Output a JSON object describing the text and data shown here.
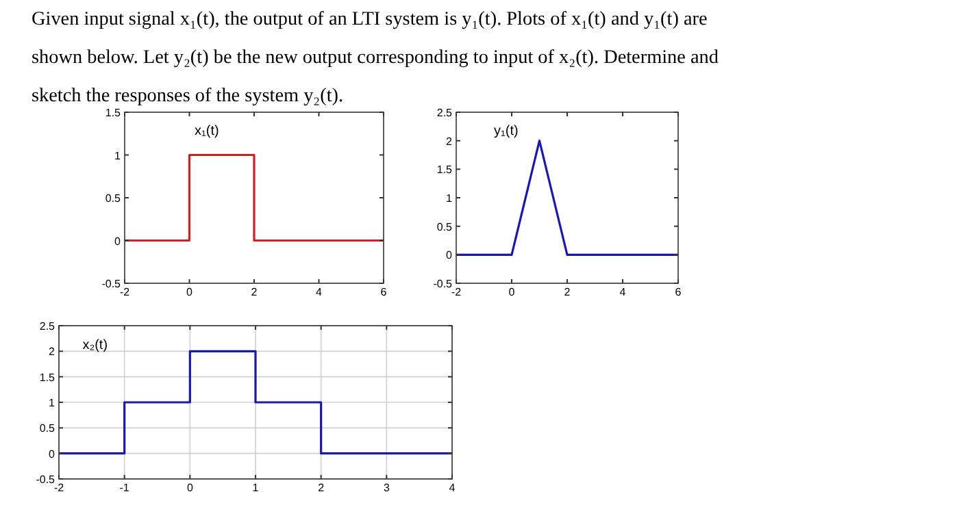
{
  "chart_data": [
    {
      "type": "other",
      "annotations": [
        "Given input signal x₁(t), the output of an LTI system is y₁(t). Plots of x₁(t) and y₁(t) are",
        "shown below. Let y₂(t) be the new output corresponding to input of x₂(t). Determine and",
        "sketch the responses of the system y₂(t)."
      ]
    },
    {
      "type": "line",
      "x": [
        -2,
        0,
        0,
        2,
        2,
        6
      ],
      "series": [
        {
          "color": "#cc2222",
          "values": [
            0,
            0,
            1,
            1,
            0,
            0
          ]
        }
      ],
      "xlim": [
        -2,
        6
      ],
      "xticks": [
        -2,
        0,
        2,
        4,
        6
      ],
      "ylim": [
        -0.5,
        1.5
      ],
      "yticks": [
        -0.5,
        0,
        0.5,
        1,
        1.5
      ],
      "grid": false,
      "annotations": [
        "x₁(t)"
      ]
    },
    {
      "type": "line",
      "x": [
        -2,
        0,
        1,
        2,
        6
      ],
      "series": [
        {
          "color": "#1a1aaa",
          "values": [
            0,
            0,
            2,
            0,
            0
          ]
        }
      ],
      "xlim": [
        -2,
        6
      ],
      "xticks": [
        -2,
        0,
        2,
        4,
        6
      ],
      "ylim": [
        -0.5,
        2.5
      ],
      "yticks": [
        -0.5,
        0,
        0.5,
        1,
        1.5,
        2,
        2.5
      ],
      "grid": false,
      "annotations": [
        "y₁(t)"
      ]
    },
    {
      "type": "line",
      "x": [
        -2,
        -1,
        -1,
        0,
        0,
        1,
        1,
        2,
        2,
        4
      ],
      "series": [
        {
          "color": "#1a1aaa",
          "values": [
            0,
            0,
            1,
            1,
            2,
            2,
            1,
            1,
            0,
            0
          ]
        }
      ],
      "xlim": [
        -2,
        4
      ],
      "xticks": [
        -2,
        -1,
        0,
        1,
        2,
        3,
        4
      ],
      "ylim": [
        -0.5,
        2.5
      ],
      "yticks": [
        -0.5,
        0,
        0.5,
        1,
        1.5,
        2,
        2.5
      ],
      "grid": true,
      "annotations": [
        "x₂(t)"
      ]
    }
  ]
}
